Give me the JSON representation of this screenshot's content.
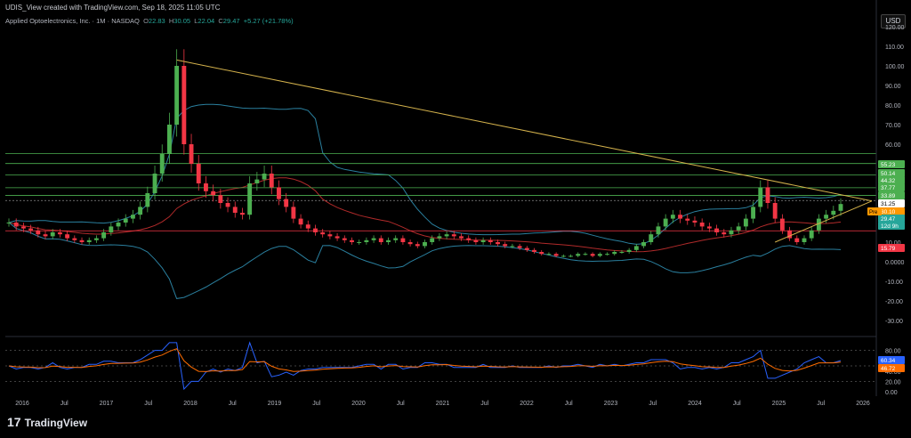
{
  "caption": "UDIS_View created with TradingView.com, Sep 18, 2025 11:05 UTC",
  "currency": "USD",
  "legend": {
    "symbol": "Applied Optoelectronics, Inc. · 1M · NASDAQ",
    "o_label": "O",
    "o": "22.83",
    "h_label": "H",
    "h": "30.05",
    "l_label": "L",
    "l": "22.04",
    "c_label": "C",
    "c": "29.47",
    "change": "+5.27 (+21.78%)"
  },
  "brand": "TradingView",
  "colors": {
    "up": "#26a69a",
    "down": "#ef5350",
    "up_candle": "#4caf50",
    "down_candle": "#f23645",
    "trend": "#d4b24c",
    "bb": "#2a7f9e",
    "ma": "#b02a2a",
    "hline": "#4caf50",
    "support": "#f23645"
  },
  "price_axis": {
    "ticks": [
      "120.00",
      "110.00",
      "100.00",
      "90.00",
      "80.00",
      "70.00",
      "60.00",
      "50.00",
      "40.00",
      "30.00",
      "20.00",
      "10.00",
      "0.0000",
      "-10.00",
      "-20.00",
      "-30.00"
    ]
  },
  "osc_axis": {
    "ticks": [
      "80.00",
      "40.00",
      "20.00",
      "0.00"
    ]
  },
  "time_axis": {
    "labels": [
      "2016",
      "Jul",
      "2017",
      "Jul",
      "2018",
      "Jul",
      "2019",
      "Jul",
      "2020",
      "Jul",
      "2021",
      "Jul",
      "2022",
      "Jul",
      "2023",
      "Jul",
      "2024",
      "Jul",
      "2025",
      "Jul",
      "2026"
    ]
  },
  "price_tags": [
    {
      "text": "55.23",
      "color": "#4caf50"
    },
    {
      "text": "50.14",
      "color": "#4caf50"
    },
    {
      "text": "44.32",
      "color": "#4caf50"
    },
    {
      "text": "37.77",
      "color": "#4caf50"
    },
    {
      "text": "33.89",
      "color": "#4caf50"
    },
    {
      "text": "31.25",
      "color": "#ffffff"
    },
    {
      "text": "30.10",
      "color": "#ff9800"
    },
    {
      "text": "29.47",
      "color": "#26a69a"
    },
    {
      "text": "12d 9h",
      "color": "#26a69a"
    },
    {
      "text": "15.79",
      "color": "#f23645"
    }
  ],
  "pre_badge": "Pre",
  "osc_tags": [
    {
      "text": "60.34",
      "color": "#2962ff"
    },
    {
      "text": "46.72",
      "color": "#ff6d00"
    }
  ],
  "chart_data": {
    "type": "candlestick",
    "interval": "1M",
    "y_range": [
      -30,
      120
    ],
    "horizontal_levels": [
      55.23,
      50.14,
      44.32,
      37.77,
      33.89,
      31.25,
      15.79
    ],
    "closes": [
      20,
      18,
      17,
      16,
      14,
      13,
      15,
      14,
      12,
      11,
      10,
      11,
      12,
      15,
      18,
      20,
      22,
      24,
      28,
      35,
      45,
      55,
      70,
      100,
      60,
      50,
      40,
      36,
      34,
      30,
      28,
      25,
      24,
      40,
      42,
      45,
      38,
      32,
      28,
      22,
      19,
      17,
      15,
      14,
      13,
      12,
      11,
      10,
      10,
      11,
      12,
      10,
      11,
      12,
      10,
      9,
      8,
      10,
      12,
      13,
      14,
      13,
      12,
      11,
      10,
      11,
      10,
      9,
      8,
      8,
      7,
      6,
      5,
      4,
      4,
      3,
      3,
      3,
      4,
      4,
      3,
      4,
      4,
      5,
      5,
      6,
      8,
      10,
      14,
      18,
      22,
      24,
      22,
      21,
      20,
      18,
      17,
      15,
      14,
      16,
      18,
      22,
      28,
      38,
      30,
      22,
      16,
      12,
      10,
      12,
      16,
      22,
      24,
      26,
      29.47
    ],
    "oscillator_range": [
      0,
      100
    ]
  }
}
